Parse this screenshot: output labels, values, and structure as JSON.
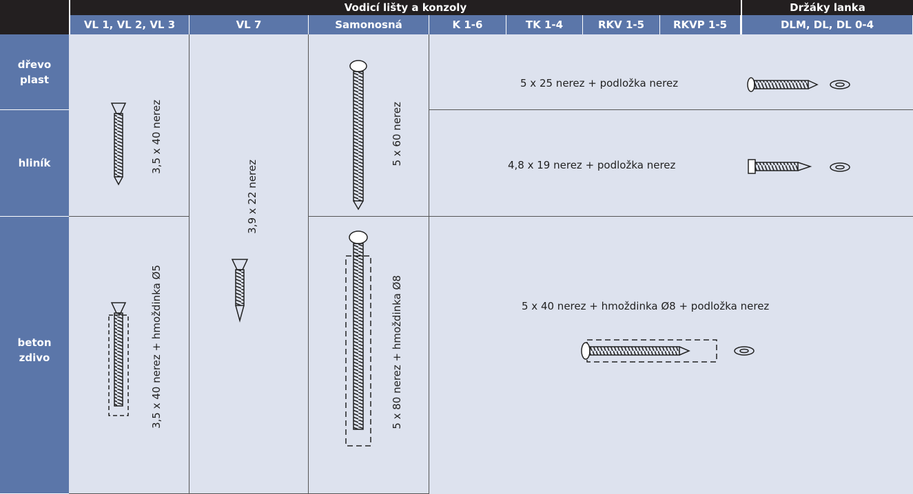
{
  "header": {
    "group_guides": "Vodicí lišty a konzoly",
    "group_holders": "Držáky lanka"
  },
  "columns": [
    "VL 1, VL 2, VL 3",
    "VL 7",
    "Samonosná",
    "K 1-6",
    "TK 1-4",
    "RKV 1-5",
    "RKVP 1-5",
    "DLM, DL, DL 0-4"
  ],
  "rows": [
    [
      "dřevo",
      "plast"
    ],
    [
      "hliník"
    ],
    [
      "beton",
      "zdivo"
    ]
  ],
  "cells": {
    "vl123_wood_alu": "3,5 x 40 nerez",
    "vl123_concrete": "3,5 x 40 nerez + hmoždinka Ø5",
    "vl7_all": "3,9 x 22 nerez",
    "self_wood_alu": "5 x 60 nerez",
    "self_concrete": "5 x 80 nerez + hmoždinka Ø8",
    "k_wood": "5 x 25 nerez + podložka nerez",
    "k_alu": "4,8 x 19 nerez + podložka nerez",
    "k_concrete": "5 x 40 nerez + hmoždinka Ø8 + podložka nerez"
  }
}
